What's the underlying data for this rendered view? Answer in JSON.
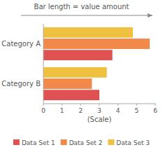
{
  "chart_data": {
    "type": "bar",
    "orientation": "horizontal",
    "annotation": "Bar length  =  value amount",
    "categories": [
      "Category A",
      "Category B"
    ],
    "series": [
      {
        "name": "Data Set 1",
        "color": "#e05252",
        "values": [
          3.7,
          3.0
        ]
      },
      {
        "name": "Data Set 2",
        "color": "#f0894a",
        "values": [
          5.7,
          2.6
        ]
      },
      {
        "name": "Data Set 3",
        "color": "#f0c040",
        "values": [
          4.8,
          3.4
        ]
      }
    ],
    "xlabel": "(Scale)",
    "xlim": [
      0,
      6
    ],
    "xticks": [
      0,
      1,
      2,
      3,
      4,
      5,
      6
    ],
    "grid": false,
    "legend": "bottom"
  }
}
